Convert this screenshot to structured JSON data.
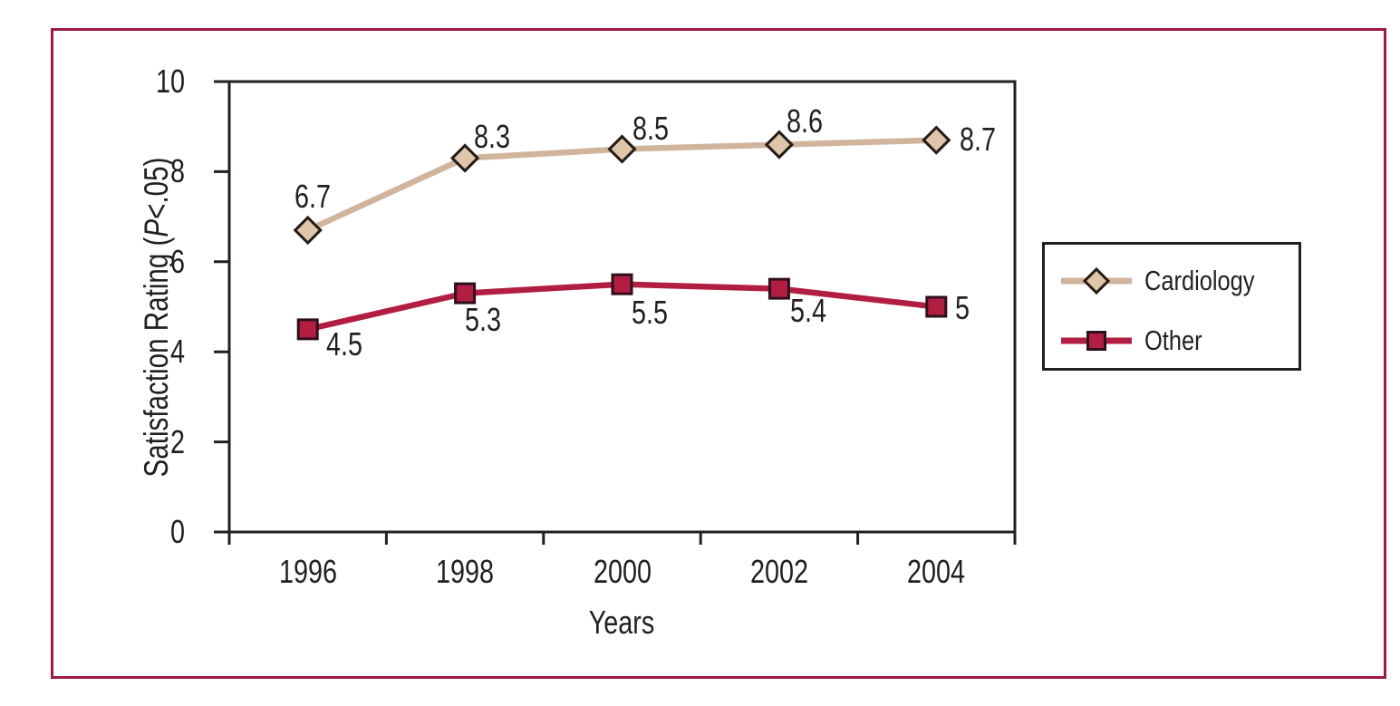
{
  "figure": {
    "border_color": "#9c1b40",
    "background": "#ffffff"
  },
  "chart_data": {
    "type": "line",
    "title": "",
    "xlabel": "Years",
    "ylabel": "Satisfaction Rating (P<.05)",
    "ylabel_prefix": "Satisfaction Rating (",
    "ylabel_italic": "P",
    "ylabel_suffix": "<.05)",
    "categories": [
      "1996",
      "1998",
      "2000",
      "2002",
      "2004"
    ],
    "ylim": [
      0,
      10
    ],
    "yticks": [
      0,
      2,
      4,
      6,
      8,
      10
    ],
    "grid": false,
    "legend_position": "right-outside",
    "axis_color": "#231f20",
    "series": [
      {
        "name": "Cardiology",
        "marker": "diamond",
        "color": "#d0b49b",
        "marker_fill": "#dfc5a9",
        "marker_stroke": "#241b16",
        "values": [
          6.7,
          8.3,
          8.5,
          8.6,
          8.7
        ],
        "labels": [
          "6.7",
          "8.3",
          "8.5",
          "8.6",
          "8.7"
        ],
        "label_offsets": [
          [
            5,
            -37
          ],
          [
            30,
            -23
          ],
          [
            31,
            -23
          ],
          [
            28,
            -26
          ],
          [
            46,
            -1
          ]
        ]
      },
      {
        "name": "Other",
        "marker": "square",
        "color": "#b11e41",
        "marker_fill": "#b11e41",
        "marker_stroke": "#2f0e1e",
        "values": [
          4.5,
          5.3,
          5.5,
          5.4,
          5
        ],
        "labels": [
          "4.5",
          "5.3",
          "5.5",
          "5.4",
          "5"
        ],
        "label_offsets": [
          [
            40,
            17
          ],
          [
            20,
            29
          ],
          [
            30,
            31
          ],
          [
            32,
            24
          ],
          [
            29,
            1
          ]
        ]
      }
    ]
  }
}
